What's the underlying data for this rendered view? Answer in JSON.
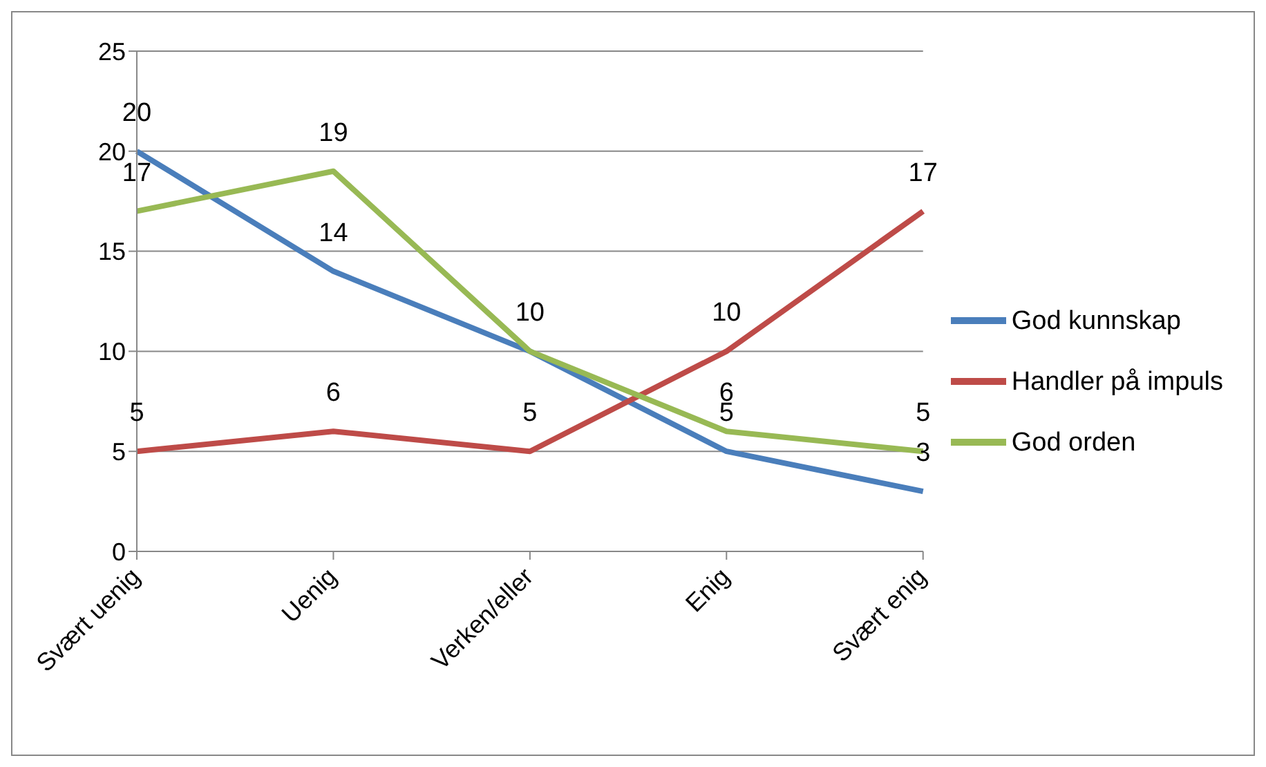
{
  "chart_data": {
    "type": "line",
    "categories": [
      "Svært uenig",
      "Uenig",
      "Verken/eller",
      "Enig",
      "Svært enig"
    ],
    "series": [
      {
        "name": "God kunnskap",
        "color": "#4a7ebb",
        "values": [
          20,
          14,
          10,
          5,
          3
        ],
        "value_labels": [
          "20",
          "14",
          "10",
          "5",
          "3"
        ]
      },
      {
        "name": "Handler på impuls",
        "color": "#be4b48",
        "values": [
          5,
          6,
          5,
          10,
          17
        ],
        "value_labels": [
          "5",
          "6",
          "5",
          "10",
          "17"
        ]
      },
      {
        "name": "God orden",
        "color": "#98b954",
        "values": [
          17,
          19,
          10,
          6,
          5
        ],
        "value_labels": [
          "17",
          "19",
          null,
          "6",
          "5"
        ]
      }
    ],
    "ylim": [
      0,
      25
    ],
    "yticks": [
      0,
      5,
      10,
      15,
      20,
      25
    ],
    "grid": "y",
    "legend": "right",
    "marker": "none",
    "line_style": "solid"
  }
}
